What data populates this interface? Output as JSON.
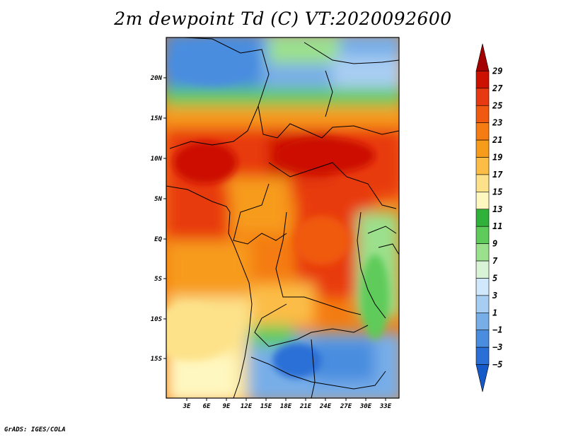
{
  "title": "2m dewpoint Td (C) VT:2020092600",
  "credit": "GrADS: IGES/COLA",
  "map": {
    "lat_labels": [
      "20N",
      "15N",
      "10N",
      "5N",
      "EQ",
      "5S",
      "10S",
      "15S"
    ],
    "lon_labels": [
      "3E",
      "6E",
      "9E",
      "12E",
      "15E",
      "18E",
      "21E",
      "24E",
      "27E",
      "30E",
      "33E"
    ]
  },
  "colorbar": {
    "labels": [
      "29",
      "27",
      "25",
      "23",
      "21",
      "19",
      "17",
      "15",
      "13",
      "11",
      "9",
      "7",
      "5",
      "3",
      "1",
      "−1",
      "−3",
      "−5"
    ],
    "colors": [
      "#a50000",
      "#cc1100",
      "#e83a10",
      "#f05a10",
      "#f47c12",
      "#f79b1a",
      "#fbbd46",
      "#fde28a",
      "#fff7c0",
      "#2fb13a",
      "#5ecb5a",
      "#9be08c",
      "#d8f3d6",
      "#cfe8fb",
      "#a8cdf3",
      "#78aee8",
      "#4a8ddf",
      "#2a6fd6",
      "#1659c8"
    ]
  }
}
